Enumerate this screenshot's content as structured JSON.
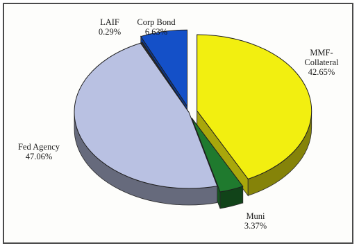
{
  "chart_data": {
    "type": "pie",
    "title": "",
    "slices": [
      {
        "label": "MMF-Collateral",
        "label_lines": [
          "MMF-",
          "Collateral"
        ],
        "value": 42.65,
        "value_text": "42.65%",
        "color": "#f2ef10",
        "exploded": true
      },
      {
        "label": "Muni",
        "label_lines": [
          "Muni"
        ],
        "value": 3.37,
        "value_text": "3.37%",
        "color": "#1f7a2e",
        "exploded": true
      },
      {
        "label": "Fed Agency",
        "label_lines": [
          "Fed Agency"
        ],
        "value": 47.06,
        "value_text": "47.06%",
        "color": "#b9c1e2",
        "exploded": false
      },
      {
        "label": "LAIF",
        "label_lines": [
          "LAIF"
        ],
        "value": 0.29,
        "value_text": "0.29%",
        "color": "#2d2d2d",
        "exploded": false
      },
      {
        "label": "Corp Bond",
        "label_lines": [
          "Corp Bond"
        ],
        "value": 6.63,
        "value_text": "6.63%",
        "color": "#1450c8",
        "exploded": true
      }
    ],
    "style": "3d-exploded-pie",
    "legend": "none"
  }
}
